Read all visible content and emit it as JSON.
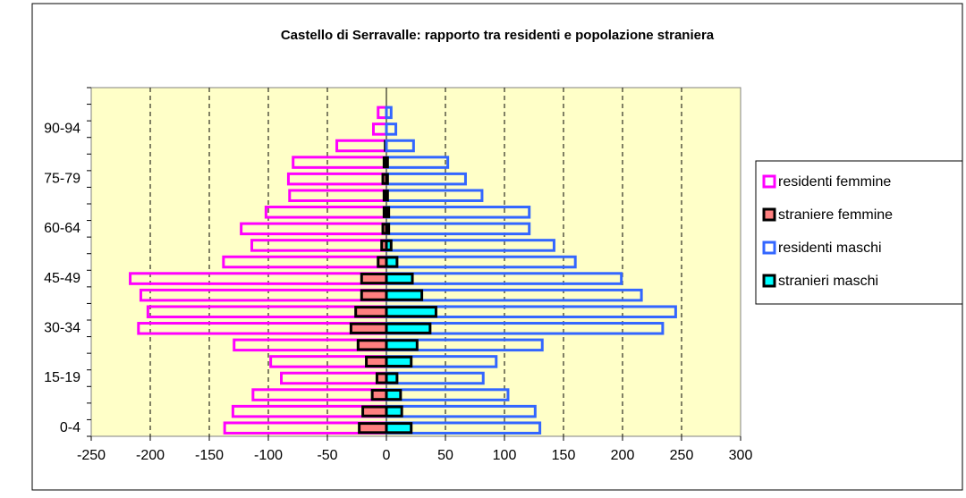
{
  "chart_data": {
    "type": "bar",
    "orientation": "horizontal",
    "title": "Castello di Serravalle: rapporto tra residenti e popolazione straniera",
    "categories": [
      "0-4",
      null,
      null,
      "15-19",
      null,
      null,
      "30-34",
      null,
      null,
      "45-49",
      null,
      null,
      "60-64",
      null,
      null,
      "75-79",
      null,
      null,
      "90-94",
      null,
      null
    ],
    "series": [
      {
        "name": "residenti femmine",
        "color": "#ff00ff",
        "filled": false,
        "values": [
          -137,
          -130,
          -113,
          -89,
          -98,
          -129,
          -210,
          -202,
          -208,
          -217,
          -138,
          -114,
          -123,
          -102,
          -82,
          -83,
          -79,
          -42,
          -11,
          -7,
          0
        ]
      },
      {
        "name": "straniere femmine",
        "color": "#ff8080",
        "filled": true,
        "values": [
          -23,
          -20,
          -12,
          -8,
          -17,
          -24,
          -30,
          -26,
          -21,
          -21,
          -7,
          -4,
          -3,
          -2,
          -2,
          -3,
          -2,
          -1,
          0,
          0,
          0
        ]
      },
      {
        "name": "residenti maschi",
        "color": "#3366ff",
        "filled": false,
        "values": [
          130,
          126,
          103,
          82,
          93,
          132,
          234,
          245,
          216,
          199,
          160,
          142,
          121,
          121,
          81,
          67,
          52,
          23,
          8,
          4,
          0
        ]
      },
      {
        "name": "stranieri maschi",
        "color": "#00ffff",
        "filled": true,
        "values": [
          21,
          13,
          12,
          9,
          21,
          26,
          37,
          42,
          30,
          22,
          9,
          4,
          2,
          2,
          1,
          1,
          1,
          0,
          0,
          0,
          0
        ]
      }
    ],
    "xlim": [
      -250,
      300
    ],
    "xticks": [
      -250,
      -200,
      -150,
      -100,
      -50,
      0,
      50,
      100,
      150,
      200,
      250,
      300
    ],
    "grid": true,
    "legend": "right"
  }
}
